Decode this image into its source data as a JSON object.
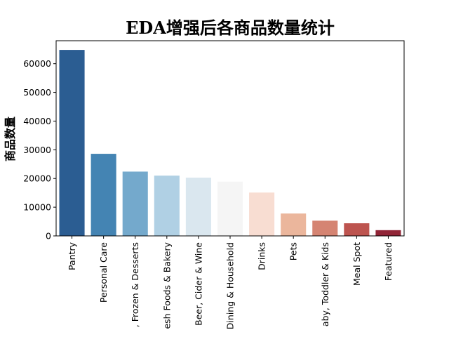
{
  "chart_data": {
    "type": "bar",
    "title": "EDA增强后各商品数量统计",
    "xlabel": "",
    "ylabel": "商品数量",
    "categories": [
      "Pantry",
      "Personal Care",
      ", Frozen & Desserts",
      "esh Foods & Bakery",
      "Beer, Cider & Wine",
      "Dining & Household",
      "Drinks",
      "Pets",
      "aby, Toddler & Kids",
      "Meal Spot",
      "Featured"
    ],
    "values": [
      64800,
      28600,
      22400,
      21000,
      20300,
      18900,
      15100,
      7800,
      5300,
      4400,
      2000
    ],
    "colors": [
      "#2b5d92",
      "#4484b3",
      "#74a9cc",
      "#b0d0e4",
      "#dae7ef",
      "#f5f5f5",
      "#f8ddd2",
      "#ebb69c",
      "#d58472",
      "#bd544f",
      "#912537"
    ],
    "ylim": [
      0,
      68000
    ],
    "yticks": [
      0,
      10000,
      20000,
      30000,
      40000,
      50000,
      60000
    ],
    "legend": "none",
    "grid": false
  }
}
